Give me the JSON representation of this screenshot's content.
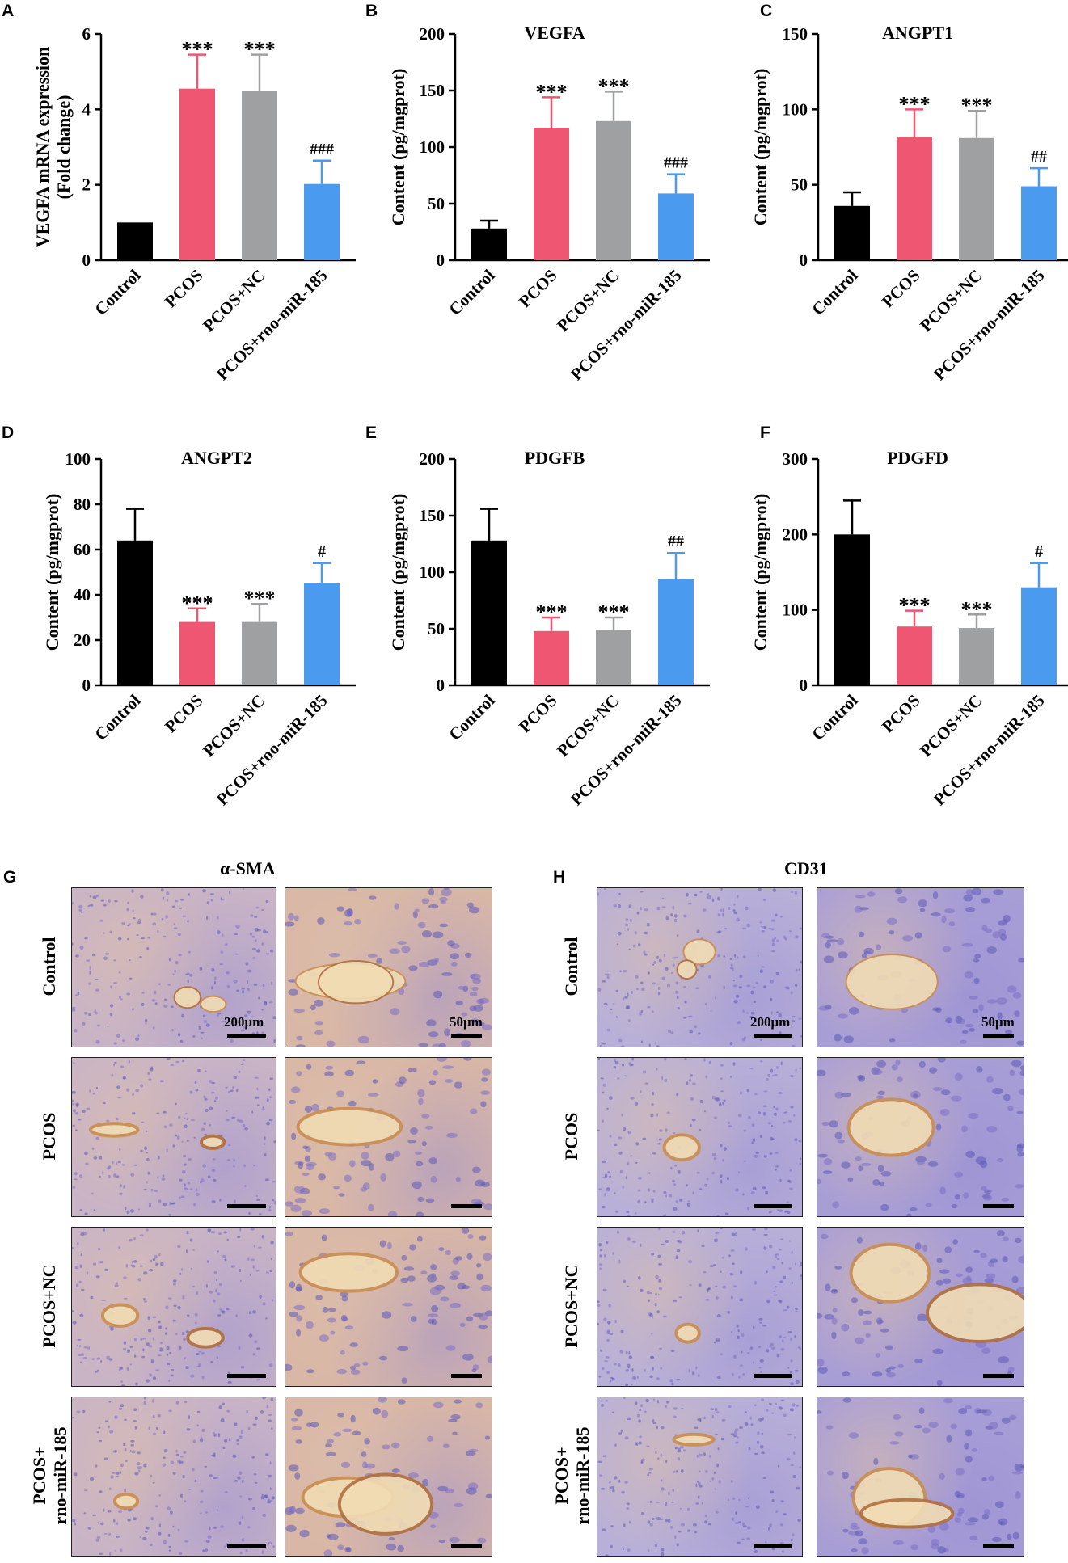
{
  "colors": {
    "control": "#000000",
    "pcos": "#ef5672",
    "pcos_nc": "#9ea0a1",
    "pcos_mir": "#4a9bf0"
  },
  "categories": [
    "Control",
    "PCOS",
    "PCOS+NC",
    "PCOS+rno-miR-185"
  ],
  "chart_data": [
    {
      "panel": "A",
      "type": "bar",
      "title": "",
      "ylabel_lines": [
        "VEGFA mRNA expression",
        "(Fold change)"
      ],
      "ylim": [
        0,
        6
      ],
      "yticks": [
        0,
        2,
        4,
        6
      ],
      "values": [
        1.0,
        4.55,
        4.5,
        2.02
      ],
      "errors": [
        0,
        0.9,
        0.95,
        0.62
      ],
      "annotations": [
        "",
        "***",
        "***",
        "###"
      ]
    },
    {
      "panel": "B",
      "type": "bar",
      "title": "VEGFA",
      "ylabel_lines": [
        "Content (pg/mgprot)"
      ],
      "ylim": [
        0,
        200
      ],
      "yticks": [
        0,
        50,
        100,
        150,
        200
      ],
      "values": [
        28,
        117,
        123,
        59
      ],
      "errors": [
        7,
        27,
        26,
        17
      ],
      "annotations": [
        "",
        "***",
        "***",
        "###"
      ]
    },
    {
      "panel": "C",
      "type": "bar",
      "title": "ANGPT1",
      "ylabel_lines": [
        "Content (pg/mgprot)"
      ],
      "ylim": [
        0,
        150
      ],
      "yticks": [
        0,
        50,
        100,
        150
      ],
      "values": [
        36,
        82,
        81,
        49
      ],
      "errors": [
        9,
        18,
        18,
        12
      ],
      "annotations": [
        "",
        "***",
        "***",
        "##"
      ]
    },
    {
      "panel": "D",
      "type": "bar",
      "title": "ANGPT2",
      "ylabel_lines": [
        "Content (pg/mgprot)"
      ],
      "ylim": [
        0,
        100
      ],
      "yticks": [
        0,
        20,
        40,
        60,
        80,
        100
      ],
      "values": [
        64,
        28,
        28,
        45
      ],
      "errors": [
        14,
        6,
        8,
        9
      ],
      "annotations": [
        "",
        "***",
        "***",
        "#"
      ]
    },
    {
      "panel": "E",
      "type": "bar",
      "title": "PDGFB",
      "ylabel_lines": [
        "Content (pg/mgprot)"
      ],
      "ylim": [
        0,
        200
      ],
      "yticks": [
        0,
        50,
        100,
        150,
        200
      ],
      "values": [
        128,
        48,
        49,
        94
      ],
      "errors": [
        28,
        12,
        11,
        23
      ],
      "annotations": [
        "",
        "***",
        "***",
        "##"
      ]
    },
    {
      "panel": "F",
      "type": "bar",
      "title": "PDGFD",
      "ylabel_lines": [
        "Content (pg/mgprot)"
      ],
      "ylim": [
        0,
        300
      ],
      "yticks": [
        0,
        100,
        200,
        300
      ],
      "values": [
        200,
        78,
        76,
        130
      ],
      "errors": [
        45,
        21,
        18,
        32
      ],
      "annotations": [
        "",
        "***",
        "***",
        "#"
      ]
    }
  ],
  "histology": {
    "G": {
      "panel": "G",
      "title": "α-SMA",
      "rows": [
        "Control",
        "PCOS",
        "PCOS+NC",
        "PCOS+\nrno-miR-185"
      ],
      "scale_labels": [
        "200μm",
        "50μm"
      ]
    },
    "H": {
      "panel": "H",
      "title": "CD31",
      "rows": [
        "Control",
        "PCOS",
        "PCOS+NC",
        "PCOS+\nrno-miR-185"
      ],
      "scale_labels": [
        "200μm",
        "50μm"
      ]
    }
  }
}
